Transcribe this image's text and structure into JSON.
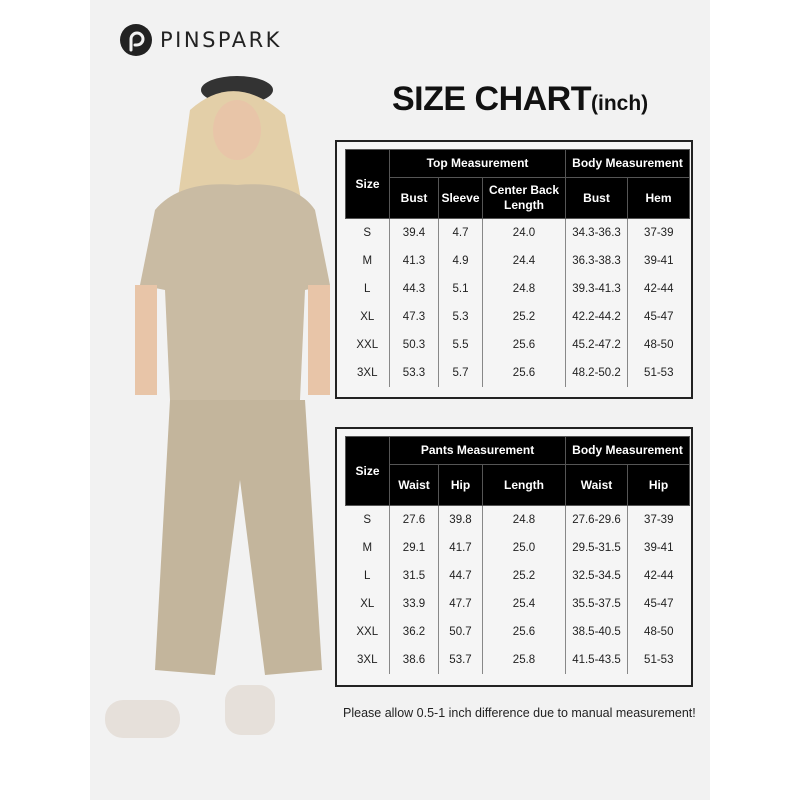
{
  "brand": {
    "name": "PINSPARK",
    "logo_icon": "pinspark-p-icon"
  },
  "title": {
    "main": "SIZE CHART",
    "unit": "(inch)"
  },
  "colors": {
    "header_bg": "#000000",
    "panel_bg": "#f2f2f2",
    "garment": "#c9bba3"
  },
  "top_table": {
    "size_label": "Size",
    "group1": "Top Measurement",
    "group2": "Body Measurement",
    "columns": [
      "Bust",
      "Sleeve",
      "Center Back Length",
      "Bust",
      "Hem"
    ],
    "rows": [
      [
        "S",
        "39.4",
        "4.7",
        "24.0",
        "34.3-36.3",
        "37-39"
      ],
      [
        "M",
        "41.3",
        "4.9",
        "24.4",
        "36.3-38.3",
        "39-41"
      ],
      [
        "L",
        "44.3",
        "5.1",
        "24.8",
        "39.3-41.3",
        "42-44"
      ],
      [
        "XL",
        "47.3",
        "5.3",
        "25.2",
        "42.2-44.2",
        "45-47"
      ],
      [
        "XXL",
        "50.3",
        "5.5",
        "25.6",
        "45.2-47.2",
        "48-50"
      ],
      [
        "3XL",
        "53.3",
        "5.7",
        "25.6",
        "48.2-50.2",
        "51-53"
      ]
    ]
  },
  "pants_table": {
    "size_label": "Size",
    "group1": "Pants Measurement",
    "group2": "Body Measurement",
    "columns": [
      "Waist",
      "Hip",
      "Length",
      "Waist",
      "Hip"
    ],
    "rows": [
      [
        "S",
        "27.6",
        "39.8",
        "24.8",
        "27.6-29.6",
        "37-39"
      ],
      [
        "M",
        "29.1",
        "41.7",
        "25.0",
        "29.5-31.5",
        "39-41"
      ],
      [
        "L",
        "31.5",
        "44.7",
        "25.2",
        "32.5-34.5",
        "42-44"
      ],
      [
        "XL",
        "33.9",
        "47.7",
        "25.4",
        "35.5-37.5",
        "45-47"
      ],
      [
        "XXL",
        "36.2",
        "50.7",
        "25.6",
        "38.5-40.5",
        "48-50"
      ],
      [
        "3XL",
        "38.6",
        "53.7",
        "25.8",
        "41.5-43.5",
        "51-53"
      ]
    ]
  },
  "note": "Please allow 0.5-1 inch difference due to manual measurement!"
}
